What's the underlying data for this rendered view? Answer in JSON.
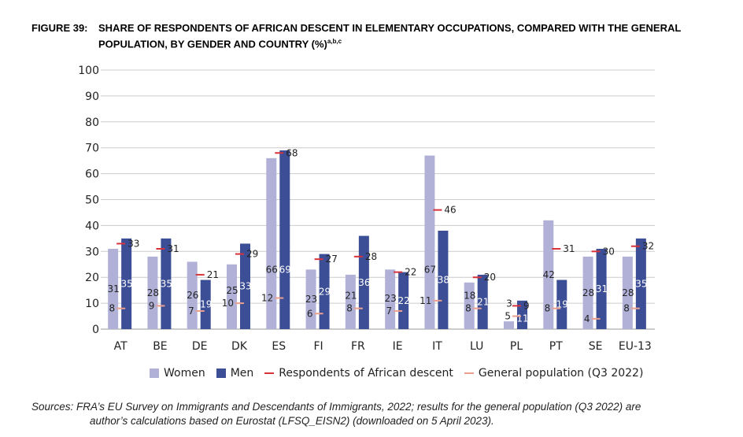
{
  "title": {
    "number": "FIGURE 39:",
    "line1": "SHARE OF RESPONDENTS OF AFRICAN DESCENT IN ELEMENTARY OCCUPATIONS, COMPARED WITH THE GENERAL",
    "line2": "POPULATION, BY GENDER AND COUNTRY (%)",
    "superscript": "a,b,c"
  },
  "chart_data": {
    "type": "bar",
    "categories": [
      "AT",
      "BE",
      "DE",
      "DK",
      "ES",
      "FI",
      "FR",
      "IE",
      "IT",
      "LU",
      "PL",
      "PT",
      "SE",
      "EU-13"
    ],
    "series": [
      {
        "name": "Women",
        "kind": "bar",
        "color": "#b1b1d8",
        "values": [
          31,
          28,
          26,
          25,
          66,
          23,
          21,
          23,
          67,
          18,
          3,
          42,
          28,
          28
        ]
      },
      {
        "name": "Men",
        "kind": "bar",
        "color": "#3c4e95",
        "values": [
          35,
          35,
          19,
          33,
          69,
          29,
          36,
          22,
          38,
          21,
          11,
          19,
          31,
          35
        ]
      },
      {
        "name": "Respondents of African descent",
        "kind": "marker",
        "color": "#d8323a",
        "values": [
          33,
          31,
          21,
          29,
          68,
          27,
          28,
          22,
          46,
          20,
          9,
          31,
          30,
          32
        ]
      },
      {
        "name": "General population (Q3 2022)",
        "kind": "marker",
        "color": "#eba08f",
        "values": [
          8,
          9,
          7,
          10,
          12,
          6,
          8,
          7,
          11,
          8,
          5,
          8,
          4,
          8
        ]
      }
    ],
    "ylim": [
      0,
      100
    ],
    "yticks": [
      0,
      10,
      20,
      30,
      40,
      50,
      60,
      70,
      80,
      90,
      100
    ],
    "grid": true,
    "legend": "bottom"
  },
  "source": {
    "line1": "Sources: FRA’s EU Survey on Immigrants and Descendants of Immigrants, 2022; results for the general population (Q3 2022) are",
    "line2": "author’s calculations based on Eurostat (LFSQ_EISN2) (downloaded on 5 April 2023)."
  }
}
